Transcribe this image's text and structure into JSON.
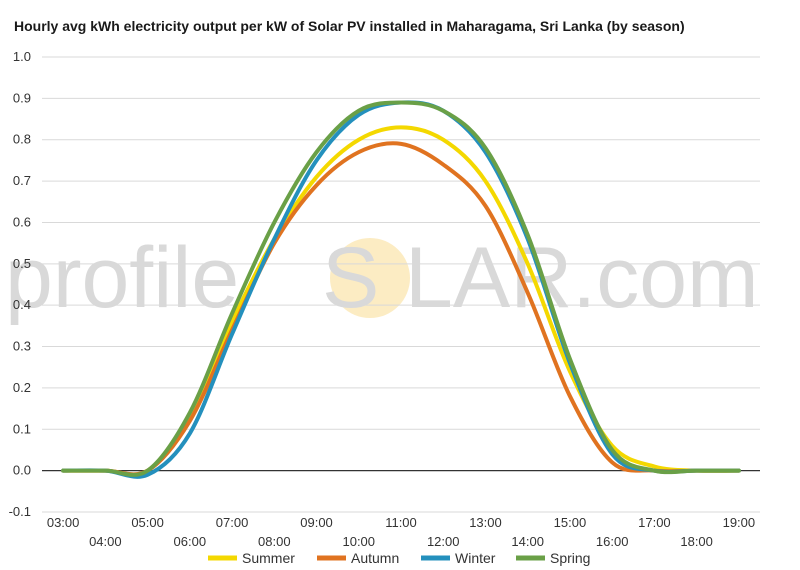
{
  "chart_data": {
    "type": "line",
    "title": "Hourly avg kWh electricity output per kW of Solar PV installed in Maharagama, Sri Lanka (by season)",
    "xlabel": "",
    "ylabel": "",
    "x_ticks": [
      "03:00",
      "04:00",
      "05:00",
      "06:00",
      "07:00",
      "08:00",
      "09:00",
      "10:00",
      "11:00",
      "12:00",
      "13:00",
      "14:00",
      "15:00",
      "16:00",
      "17:00",
      "18:00",
      "19:00"
    ],
    "y_ticks": [
      "-0.1",
      "0.0",
      "0.1",
      "0.2",
      "0.3",
      "0.4",
      "0.5",
      "0.6",
      "0.7",
      "0.8",
      "0.9",
      "1.0"
    ],
    "ylim": [
      -0.1,
      1.0
    ],
    "x_hours": [
      3,
      4,
      5,
      6,
      7,
      8,
      9,
      10,
      11,
      12,
      13,
      14,
      15,
      16,
      17,
      18,
      19
    ],
    "grid": true,
    "legend_position": "bottom",
    "watermark": {
      "left": "profile",
      "right": "LAR.com",
      "sun_letter": "S"
    },
    "series": [
      {
        "name": "Summer",
        "color": "#f4d800",
        "values": [
          0.0,
          0.0,
          0.0,
          0.13,
          0.36,
          0.56,
          0.71,
          0.8,
          0.83,
          0.8,
          0.7,
          0.5,
          0.24,
          0.06,
          0.01,
          0.0,
          0.0
        ]
      },
      {
        "name": "Autumn",
        "color": "#e07320",
        "values": [
          0.0,
          0.0,
          0.0,
          0.12,
          0.34,
          0.55,
          0.69,
          0.77,
          0.79,
          0.74,
          0.64,
          0.43,
          0.18,
          0.02,
          0.0,
          0.0,
          0.0
        ]
      },
      {
        "name": "Winter",
        "color": "#2490bd",
        "values": [
          0.0,
          0.0,
          -0.01,
          0.09,
          0.33,
          0.56,
          0.75,
          0.86,
          0.89,
          0.87,
          0.77,
          0.56,
          0.26,
          0.04,
          0.0,
          0.0,
          0.0
        ]
      },
      {
        "name": "Spring",
        "color": "#6aa047",
        "values": [
          0.0,
          0.0,
          0.0,
          0.14,
          0.38,
          0.6,
          0.77,
          0.87,
          0.89,
          0.87,
          0.78,
          0.57,
          0.27,
          0.05,
          0.0,
          0.0,
          0.0
        ]
      }
    ]
  }
}
